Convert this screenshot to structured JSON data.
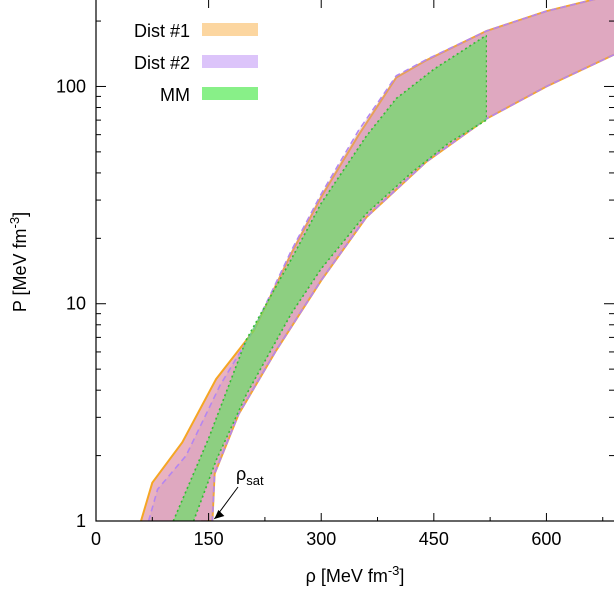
{
  "chart_data": {
    "type": "area",
    "xlabel": "ρ  [MeV fm⁻³]",
    "xlabel_main": "ρ  [MeV fm",
    "xlabel_sup": "-3",
    "xlabel_end": "]",
    "ylabel_main": "P  [MeV fm",
    "ylabel_sup": "-3",
    "ylabel_end": "]",
    "xlim": [
      0,
      690
    ],
    "ylim": [
      1,
      250
    ],
    "yscale": "log",
    "x_ticks": [
      0,
      150,
      300,
      450,
      600
    ],
    "x_tick_labels": [
      "0",
      "150",
      "300",
      "450",
      "600"
    ],
    "y_ticks": [
      1,
      10,
      100
    ],
    "y_tick_labels": [
      "1",
      "10",
      "100"
    ],
    "legend_position": "top-left",
    "series": [
      {
        "name": "Dist #1",
        "color": "#f5a623",
        "swatch": "#fcd6a0",
        "upper": [
          [
            60,
            1
          ],
          [
            75,
            1.5
          ],
          [
            115,
            2.3
          ],
          [
            160,
            4.5
          ],
          [
            210,
            7.5
          ],
          [
            260,
            17
          ],
          [
            300,
            31
          ],
          [
            350,
            60
          ],
          [
            400,
            110
          ],
          [
            440,
            132
          ],
          [
            520,
            180
          ],
          [
            600,
            222
          ],
          [
            690,
            265
          ]
        ],
        "lower": [
          [
            140,
            1
          ],
          [
            155,
            1
          ],
          [
            158,
            1.65
          ],
          [
            190,
            3.1
          ],
          [
            240,
            6.1
          ],
          [
            300,
            12.8
          ],
          [
            360,
            25
          ],
          [
            440,
            45
          ],
          [
            520,
            71
          ],
          [
            600,
            100
          ],
          [
            690,
            140
          ]
        ]
      },
      {
        "name": "Dist #2",
        "color": "#b486f0",
        "swatch": "#dcc4fa",
        "upper": [
          [
            70,
            1
          ],
          [
            82,
            1.4
          ],
          [
            120,
            2.0
          ],
          [
            165,
            4.2
          ],
          [
            210,
            7.6
          ],
          [
            260,
            17.5
          ],
          [
            300,
            32
          ],
          [
            350,
            63
          ],
          [
            400,
            112
          ],
          [
            440,
            133
          ],
          [
            520,
            180
          ],
          [
            600,
            222
          ],
          [
            690,
            265
          ]
        ],
        "lower": [
          [
            140,
            1
          ],
          [
            155,
            1
          ],
          [
            158,
            1.65
          ],
          [
            190,
            3.1
          ],
          [
            240,
            6.1
          ],
          [
            300,
            12.8
          ],
          [
            360,
            25
          ],
          [
            440,
            45
          ],
          [
            520,
            71
          ],
          [
            600,
            100
          ],
          [
            690,
            140
          ]
        ]
      },
      {
        "name": "MM",
        "color": "#33bb33",
        "swatch": "#88f088",
        "upper": [
          [
            103,
            1
          ],
          [
            150,
            2.4
          ],
          [
            200,
            6.8
          ],
          [
            260,
            16
          ],
          [
            300,
            29
          ],
          [
            360,
            59
          ],
          [
            400,
            88
          ],
          [
            450,
            120
          ],
          [
            520,
            172
          ]
        ],
        "lower": [
          [
            130,
            1
          ],
          [
            160,
            1.9
          ],
          [
            200,
            3.8
          ],
          [
            260,
            9
          ],
          [
            300,
            14.5
          ],
          [
            360,
            26
          ],
          [
            420,
            40
          ],
          [
            470,
            55
          ],
          [
            520,
            70
          ]
        ]
      }
    ],
    "annotation": {
      "text_main": "ρ",
      "text_sub": "sat",
      "x": 155,
      "y": 1
    }
  }
}
